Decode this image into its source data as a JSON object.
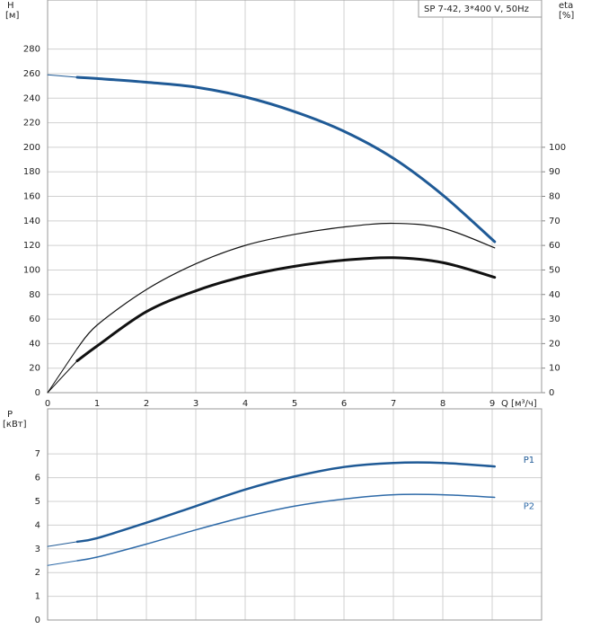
{
  "chart_data": [
    {
      "type": "line",
      "title": "SP 7-42, 3*400 V, 50Hz",
      "ylabel": "H",
      "yunit": "[м]",
      "y2label": "eta",
      "y2unit": "[%]",
      "xlabel": "Q [м³/ч]",
      "x": [
        0,
        0.6,
        1,
        2,
        3,
        4,
        5,
        6,
        7,
        8,
        9.05
      ],
      "xlim": [
        0,
        10
      ],
      "xticks": [
        0,
        1,
        2,
        3,
        4,
        5,
        6,
        7,
        8,
        9
      ],
      "ylim": [
        0,
        320
      ],
      "yticks": [
        0,
        20,
        40,
        60,
        80,
        100,
        120,
        140,
        160,
        180,
        200,
        220,
        240,
        260,
        280
      ],
      "y2lim": [
        0,
        160
      ],
      "y2ticks": [
        0,
        10,
        20,
        30,
        40,
        50,
        60,
        70,
        80,
        90,
        100
      ],
      "grid": true,
      "series": [
        {
          "color": "#1f5a96",
          "width": 3,
          "values": [
            259,
            257,
            256,
            253,
            249,
            241,
            229,
            213,
            191,
            161,
            123
          ]
        },
        {
          "color": "#111111",
          "width": 1.2,
          "axis": "y2",
          "values": [
            0,
            18,
            27.5,
            42,
            52.5,
            60,
            64.5,
            67.5,
            69,
            67,
            59
          ]
        },
        {
          "color": "#111111",
          "width": 3,
          "axis": "y2",
          "values": [
            0,
            13,
            19,
            33,
            41.5,
            47.5,
            51.5,
            54,
            55,
            53,
            47
          ]
        }
      ]
    },
    {
      "type": "line",
      "ylabel": "P",
      "yunit": "[кВт]",
      "x": [
        0,
        0.6,
        1,
        2,
        3,
        4,
        5,
        6,
        7,
        8,
        9.05
      ],
      "xlim": [
        0,
        10
      ],
      "ylim": [
        0,
        8.9
      ],
      "yticks": [
        0,
        1,
        2,
        3,
        4,
        5,
        6,
        7
      ],
      "grid": true,
      "series": [
        {
          "name": "P1",
          "color": "#1f5a96",
          "width": 2.5,
          "values": [
            3.1,
            3.3,
            3.45,
            4.1,
            4.8,
            5.5,
            6.05,
            6.45,
            6.62,
            6.62,
            6.47
          ]
        },
        {
          "name": "P2",
          "color": "#2e6aa8",
          "width": 1.5,
          "values": [
            2.3,
            2.5,
            2.65,
            3.2,
            3.8,
            4.35,
            4.8,
            5.1,
            5.28,
            5.28,
            5.17
          ]
        }
      ]
    }
  ]
}
